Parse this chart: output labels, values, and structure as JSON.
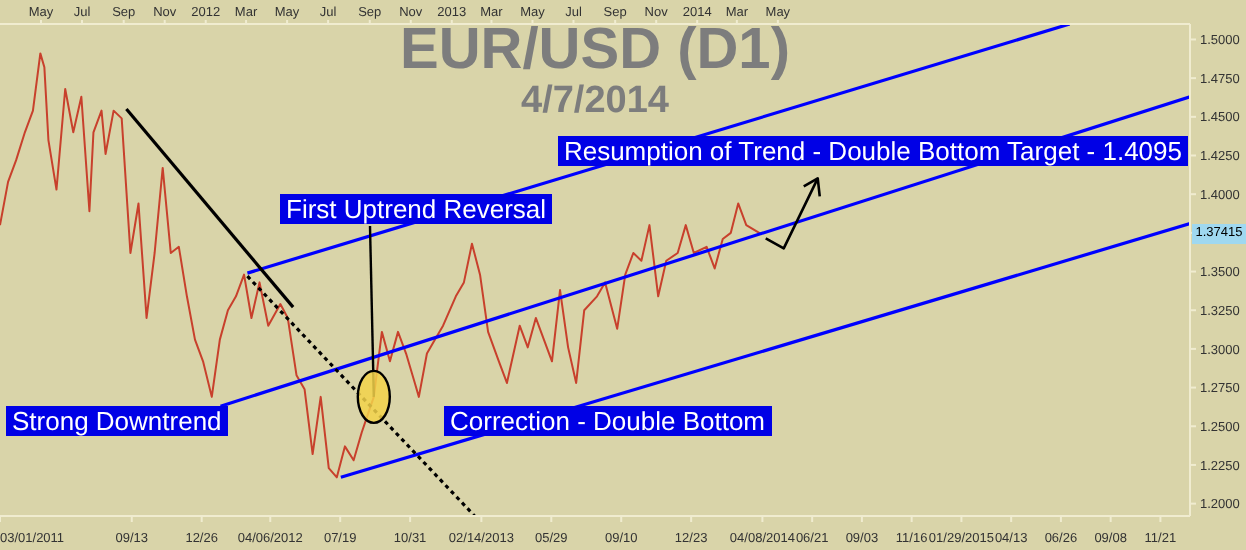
{
  "chart_data": {
    "type": "line",
    "title": "EUR/USD (D1)",
    "subtitle": "4/7/2014",
    "annotations": [
      "Strong Downtrend",
      {
        "text": "First Uptrend Reversal",
        "x": "2012-09-07",
        "y": 1.269
      },
      "Correction - Double Bottom",
      "Resumption of Trend - Double Bottom Target - 1.4095",
      {
        "text": "1.37415",
        "y": 1.37415
      }
    ],
    "xlim": [
      "2011-03-01",
      "2016-01-04"
    ],
    "xticks": [
      {
        "value": "2011-03-01",
        "label": "03/01/2011"
      },
      {
        "value": "2011-09-13",
        "label": "09/13"
      },
      {
        "value": "2011-12-26",
        "label": "12/26"
      },
      {
        "value": "2012-04-06",
        "label": "04/06/2012"
      },
      {
        "value": "2012-07-19",
        "label": "07/19"
      },
      {
        "value": "2012-10-31",
        "label": "10/31"
      },
      {
        "value": "2013-02-14",
        "label": "02/14/2013"
      },
      {
        "value": "2013-05-29",
        "label": "05/29"
      },
      {
        "value": "2013-09-10",
        "label": "09/10"
      },
      {
        "value": "2013-12-23",
        "label": "12/23"
      },
      {
        "value": "2014-04-08",
        "label": "04/08/2014"
      },
      {
        "value": "2014-06-21",
        "label": "06/21"
      },
      {
        "value": "2014-09-03",
        "label": "09/03"
      },
      {
        "value": "2014-11-16",
        "label": "11/16"
      },
      {
        "value": "2015-01-29",
        "label": "01/29/2015"
      },
      {
        "value": "2015-04-13",
        "label": "04/13"
      },
      {
        "value": "2015-06-26",
        "label": "06/26"
      },
      {
        "value": "2015-09-08",
        "label": "09/08"
      },
      {
        "value": "2015-11-21",
        "label": "11/21"
      }
    ],
    "x2lim": [
      "2011-03-01",
      "2016-01-04"
    ],
    "x2ticks": [
      {
        "value": "2011-05-01",
        "label": "May"
      },
      {
        "value": "2011-07-01",
        "label": "Jul"
      },
      {
        "value": "2011-09-01",
        "label": "Sep"
      },
      {
        "value": "2011-11-01",
        "label": "Nov"
      },
      {
        "value": "2012-01-01",
        "label": "2012"
      },
      {
        "value": "2012-03-01",
        "label": "Mar"
      },
      {
        "value": "2012-05-01",
        "label": "May"
      },
      {
        "value": "2012-07-01",
        "label": "Jul"
      },
      {
        "value": "2012-09-01",
        "label": "Sep"
      },
      {
        "value": "2012-11-01",
        "label": "Nov"
      },
      {
        "value": "2013-01-01",
        "label": "2013"
      },
      {
        "value": "2013-03-01",
        "label": "Mar"
      },
      {
        "value": "2013-05-01",
        "label": "May"
      },
      {
        "value": "2013-07-01",
        "label": "Jul"
      },
      {
        "value": "2013-09-01",
        "label": "Sep"
      },
      {
        "value": "2013-11-01",
        "label": "Nov"
      },
      {
        "value": "2014-01-01",
        "label": "2014"
      },
      {
        "value": "2014-03-01",
        "label": "Mar"
      },
      {
        "value": "2014-05-01",
        "label": "May"
      }
    ],
    "ylim": [
      1.192,
      1.51
    ],
    "yticks": [
      {
        "value": 1.2,
        "label": "1.2000"
      },
      {
        "value": 1.225,
        "label": "1.2250"
      },
      {
        "value": 1.25,
        "label": "1.2500"
      },
      {
        "value": 1.275,
        "label": "1.2750"
      },
      {
        "value": 1.3,
        "label": "1.3000"
      },
      {
        "value": 1.325,
        "label": "1.3250"
      },
      {
        "value": 1.35,
        "label": "1.3500"
      },
      {
        "value": 1.375,
        "label": null
      },
      {
        "value": 1.4,
        "label": "1.4000"
      },
      {
        "value": 1.425,
        "label": "1.4250"
      },
      {
        "value": 1.45,
        "label": "1.4500"
      },
      {
        "value": 1.475,
        "label": "1.4750"
      },
      {
        "value": 1.5,
        "label": "1.5000"
      }
    ],
    "series": [
      {
        "color": "#c8402c",
        "x": [
          "2011-03-01",
          "2011-03-13",
          "2011-03-25",
          "2011-04-07",
          "2011-04-19",
          "2011-04-30",
          "2011-05-06",
          "2011-05-12",
          "2011-05-24",
          "2011-06-06",
          "2011-06-18",
          "2011-06-30",
          "2011-07-12",
          "2011-07-18",
          "2011-07-30",
          "2011-08-05",
          "2011-08-17",
          "2011-08-29",
          "2011-09-11",
          "2011-09-23",
          "2011-10-05",
          "2011-10-17",
          "2011-10-29",
          "2011-11-10",
          "2011-11-22",
          "2011-12-04",
          "2011-12-16",
          "2011-12-28",
          "2012-01-10",
          "2012-01-22",
          "2012-02-03",
          "2012-02-15",
          "2012-02-27",
          "2012-03-09",
          "2012-03-21",
          "2012-04-03",
          "2012-04-21",
          "2012-05-02",
          "2012-05-15",
          "2012-05-27",
          "2012-06-08",
          "2012-06-20",
          "2012-07-02",
          "2012-07-14",
          "2012-07-26",
          "2012-08-08",
          "2012-08-20",
          "2012-09-07",
          "2012-09-19",
          "2012-10-01",
          "2012-10-13",
          "2012-10-25",
          "2012-11-07",
          "2012-11-13",
          "2012-11-25",
          "2012-12-07",
          "2012-12-19",
          "2013-01-07",
          "2013-01-19",
          "2013-01-31",
          "2013-02-12",
          "2013-02-24",
          "2013-03-12",
          "2013-03-24",
          "2013-04-12",
          "2013-04-24",
          "2013-05-06",
          "2013-05-18",
          "2013-05-30",
          "2013-06-11",
          "2013-06-23",
          "2013-07-05",
          "2013-07-17",
          "2013-08-05",
          "2013-08-17",
          "2013-09-04",
          "2013-09-16",
          "2013-09-28",
          "2013-10-10",
          "2013-10-22",
          "2013-11-04",
          "2013-11-16",
          "2013-12-03",
          "2013-12-15",
          "2013-12-27",
          "2014-01-15",
          "2014-01-27",
          "2014-02-08",
          "2014-02-20",
          "2014-03-03",
          "2014-03-15",
          "2014-04-07"
        ],
        "values": [
          1.38,
          1.408,
          1.422,
          1.44,
          1.454,
          1.491,
          1.482,
          1.435,
          1.403,
          1.468,
          1.44,
          1.463,
          1.389,
          1.44,
          1.454,
          1.426,
          1.454,
          1.449,
          1.362,
          1.394,
          1.32,
          1.362,
          1.417,
          1.362,
          1.366,
          1.334,
          1.306,
          1.292,
          1.269,
          1.306,
          1.325,
          1.334,
          1.348,
          1.32,
          1.343,
          1.315,
          1.329,
          1.32,
          1.283,
          1.274,
          1.232,
          1.269,
          1.223,
          1.217,
          1.237,
          1.228,
          1.246,
          1.269,
          1.311,
          1.292,
          1.311,
          1.297,
          1.278,
          1.269,
          1.297,
          1.306,
          1.315,
          1.334,
          1.343,
          1.368,
          1.348,
          1.311,
          1.292,
          1.278,
          1.315,
          1.301,
          1.32,
          1.306,
          1.292,
          1.338,
          1.301,
          1.278,
          1.325,
          1.334,
          1.343,
          1.313,
          1.348,
          1.362,
          1.357,
          1.38,
          1.334,
          1.357,
          1.362,
          1.38,
          1.362,
          1.366,
          1.352,
          1.371,
          1.375,
          1.394,
          1.38,
          1.374
        ]
      },
      {
        "color": "#0000ff",
        "x": [
          "2012-03-03",
          "2015-07-09"
        ],
        "values": [
          1.349,
          1.51
        ]
      },
      {
        "color": "#0000ff",
        "x": [
          "2012-01-23",
          "2016-01-04"
        ],
        "values": [
          1.263,
          1.463
        ]
      },
      {
        "color": "#0000ff",
        "x": [
          "2012-07-20",
          "2016-01-04"
        ],
        "values": [
          1.217,
          1.381
        ]
      },
      {
        "color": "#000000",
        "x": [
          "2011-09-05",
          "2012-05-10"
        ],
        "values": [
          1.455,
          1.327
        ]
      },
      {
        "color": "#000000",
        "line_style": "dotted",
        "x": [
          "2012-03-03",
          "2013-02-04"
        ],
        "values": [
          1.347,
          1.192
        ]
      }
    ]
  }
}
